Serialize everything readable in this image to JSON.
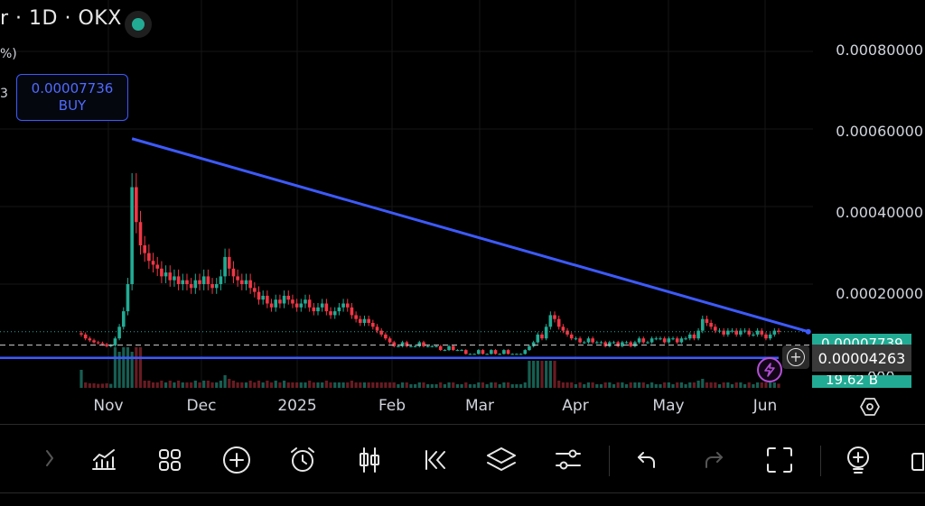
{
  "header": {
    "title": "· 1D · OKX",
    "title_prefix": "r",
    "legend_line1": "%)",
    "legend_line2": "3"
  },
  "buy_order": {
    "price": "0.00007736",
    "label": "BUY"
  },
  "price_axis": {
    "labels": [
      "0.00080000",
      "0.00060000",
      "0.00040000",
      "0.00020000"
    ],
    "current_price_tag": "0.00007739",
    "crosshair_price": "0.00004263",
    "volume_tag": "19.62 B",
    "tail_label": "000"
  },
  "time_axis": {
    "labels": [
      "Nov",
      "Dec",
      "2025",
      "Feb",
      "Mar",
      "Apr",
      "May",
      "Jun"
    ]
  },
  "colors": {
    "up": "#22ab94",
    "down": "#f23645",
    "trendline": "#3d5afe",
    "accent": "#22ab94",
    "buy": "#3d5afe"
  },
  "icons": {
    "crosshair_add": "plus-circle-icon",
    "lightning": "lightning-icon",
    "settings": "hexagon-settings-icon"
  },
  "toolbar": {
    "items": [
      {
        "name": "indicators",
        "icon": "bar-chart-trend-icon"
      },
      {
        "name": "layouts",
        "icon": "grid-icon"
      },
      {
        "name": "add",
        "icon": "plus-circle-icon"
      },
      {
        "name": "alert",
        "icon": "alarm-clock-icon"
      },
      {
        "name": "chart-type",
        "icon": "candlestick-icon"
      },
      {
        "name": "replay",
        "icon": "rewind-icon"
      },
      {
        "name": "objects",
        "icon": "layers-icon"
      },
      {
        "name": "settings",
        "icon": "sliders-icon"
      },
      {
        "name": "undo",
        "icon": "undo-icon"
      },
      {
        "name": "redo",
        "icon": "redo-icon"
      },
      {
        "name": "fullscreen",
        "icon": "fullscreen-icon"
      },
      {
        "name": "ideas",
        "icon": "lightbulb-plus-icon"
      }
    ]
  },
  "chart_data": {
    "type": "candlestick",
    "instrument_interval": "1D",
    "exchange": "OKX",
    "x_labels": [
      "Nov",
      "Dec",
      "2025",
      "Feb",
      "Mar",
      "Apr",
      "May",
      "Jun"
    ],
    "y_ticks": [
      0.0002,
      0.0004,
      0.0006,
      0.0008
    ],
    "ylim": [
      0.0,
      0.00088
    ],
    "closes": [
      7e-05,
      6e-05,
      5.5e-05,
      5e-05,
      4.8e-05,
      4.5e-05,
      4e-05,
      4.2e-05,
      6e-05,
      9e-05,
      0.00013,
      0.0002,
      0.00045,
      0.00036,
      0.0003,
      0.00028,
      0.00026,
      0.00025,
      0.00024,
      0.00022,
      0.00023,
      0.00021,
      0.00022,
      0.0002,
      0.00021,
      0.0002,
      0.00019,
      0.00021,
      0.0002,
      0.00022,
      0.0002,
      0.00019,
      0.0002,
      0.00022,
      0.00027,
      0.00024,
      0.00022,
      0.00021,
      0.0002,
      0.00021,
      0.00019,
      0.00018,
      0.00016,
      0.00017,
      0.00015,
      0.00014,
      0.00016,
      0.00015,
      0.00017,
      0.00016,
      0.00015,
      0.00014,
      0.00015,
      0.00016,
      0.00014,
      0.00013,
      0.00014,
      0.00015,
      0.00013,
      0.00012,
      0.00013,
      0.00014,
      0.00015,
      0.00014,
      0.00012,
      0.00011,
      0.0001,
      0.00011,
      0.0001,
      9e-05,
      8e-05,
      7e-05,
      6e-05,
      5e-05,
      4e-05,
      4e-05,
      5e-05,
      4e-05,
      4e-05,
      4e-05,
      5e-05,
      4e-05,
      4e-05,
      4e-05,
      4e-05,
      3e-05,
      3e-05,
      4e-05,
      3e-05,
      3e-05,
      3e-05,
      2e-05,
      2e-05,
      2e-05,
      3e-05,
      2e-05,
      2e-05,
      3e-05,
      2e-05,
      2e-05,
      3e-05,
      2e-05,
      2e-05,
      2e-05,
      2e-05,
      3e-05,
      4e-05,
      5e-05,
      7e-05,
      6e-05,
      9e-05,
      0.00012,
      0.00011,
      9e-05,
      8e-05,
      7e-05,
      6e-05,
      6e-05,
      5e-05,
      5e-05,
      6e-05,
      5e-05,
      5e-05,
      5e-05,
      4e-05,
      5e-05,
      5e-05,
      4e-05,
      5e-05,
      5e-05,
      4e-05,
      5e-05,
      6e-05,
      5e-05,
      5e-05,
      6e-05,
      6e-05,
      6e-05,
      5e-05,
      6e-05,
      6e-05,
      5e-05,
      6e-05,
      6e-05,
      7e-05,
      6e-05,
      8e-05,
      0.00011,
      0.0001,
      9e-05,
      8e-05,
      8e-05,
      7e-05,
      8e-05,
      8e-05,
      7e-05,
      8e-05,
      8e-05,
      7e-05,
      7e-05,
      8e-05,
      7e-05,
      6e-05,
      7e-05,
      8e-05,
      7.7e-05
    ],
    "trendline": {
      "from": {
        "x_index": 12,
        "y": 0.000575
      },
      "to": {
        "x_index": 172,
        "y": 7.74e-05
      }
    },
    "support_line": 1e-05,
    "current_price": 7.739e-05,
    "crosshair_price": 4.263e-05,
    "volume_label": "19.62 B"
  }
}
